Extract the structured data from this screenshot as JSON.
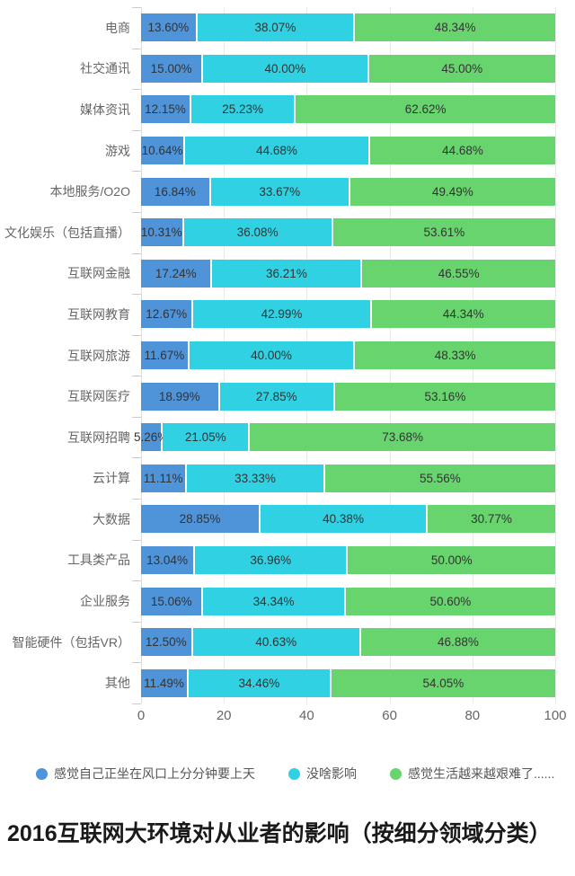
{
  "chart_data": {
    "type": "bar",
    "orientation": "horizontal-stacked",
    "title": "2016互联网大环境对从业者的影响（按细分领域分类）",
    "categories": [
      "电商",
      "社交通讯",
      "媒体资讯",
      "游戏",
      "本地服务/O2O",
      "文化娱乐（包括直播）",
      "互联网金融",
      "互联网教育",
      "互联网旅游",
      "互联网医疗",
      "互联网招聘",
      "云计算",
      "大数据",
      "工具类产品",
      "企业服务",
      "智能硬件（包括VR）",
      "其他"
    ],
    "series": [
      {
        "name": "感觉自己正坐在风口上分分钟要上天",
        "color": "#4f94d8",
        "values": [
          13.6,
          15.0,
          12.15,
          10.64,
          16.84,
          10.31,
          17.24,
          12.67,
          11.67,
          18.99,
          5.26,
          11.11,
          28.85,
          13.04,
          15.06,
          12.5,
          11.49
        ]
      },
      {
        "name": "没啥影响",
        "color": "#30d1e2",
        "values": [
          38.07,
          40.0,
          25.23,
          44.68,
          33.67,
          36.08,
          36.21,
          42.99,
          40.0,
          27.85,
          21.05,
          33.33,
          40.38,
          36.96,
          34.34,
          40.63,
          34.46
        ]
      },
      {
        "name": "感觉生活越来越艰难了......",
        "color": "#68d46e",
        "values": [
          48.34,
          45.0,
          62.62,
          44.68,
          49.49,
          53.61,
          46.55,
          44.34,
          48.33,
          53.16,
          73.68,
          55.56,
          30.77,
          50.0,
          50.6,
          46.88,
          54.05
        ]
      }
    ],
    "value_label_format": "0.00%",
    "xlabel": "",
    "ylabel": "",
    "xlim": [
      0,
      100
    ],
    "x_ticks": [
      "0",
      "20",
      "40",
      "60",
      "80",
      "100"
    ],
    "grid": true,
    "legend_position": "bottom",
    "colors": {
      "grid": "#e9e9e9",
      "axis": "#cccccc",
      "category_text": "#666666",
      "value_text": "#333333",
      "legend_text": "#555555",
      "title_text": "#1a1a1a"
    }
  }
}
